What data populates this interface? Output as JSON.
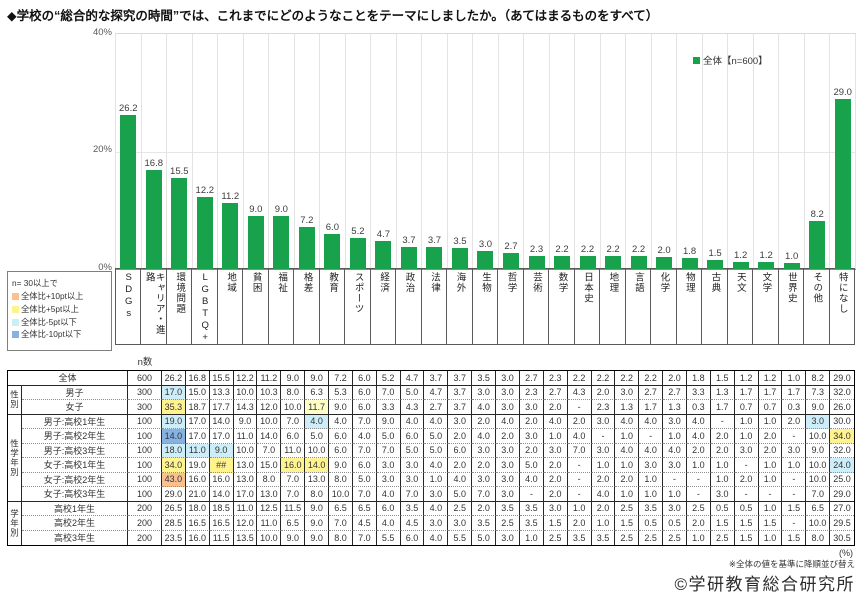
{
  "title": "◆学校の“総合的な探究の時間”では、これまでにどのようなことをテーマにしましたか。（あてはまるものをすべて）",
  "chart_data": {
    "type": "bar",
    "legend": "全体【n=600】",
    "ylim": [
      0,
      40
    ],
    "yticks": [
      "40%",
      "20%",
      "0%"
    ],
    "grid": "horizontal at 20%, vertical category separators",
    "categories": [
      "SDGs",
      "キャリア・進路",
      "環境問題",
      "LGBTQ+",
      "地域",
      "貧困",
      "福祉",
      "格差",
      "教育",
      "スポーツ",
      "経済",
      "政治",
      "法律",
      "海外",
      "生物",
      "哲学",
      "芸術",
      "数学",
      "日本史",
      "地理",
      "言語",
      "化学",
      "物理",
      "古典",
      "天文",
      "文学",
      "世界史",
      "その他",
      "特になし"
    ],
    "values": [
      26.2,
      16.8,
      15.5,
      12.2,
      11.2,
      9.0,
      9.0,
      7.2,
      6.0,
      5.2,
      4.7,
      3.7,
      3.7,
      3.5,
      3.0,
      2.7,
      2.3,
      2.2,
      2.2,
      2.2,
      2.2,
      2.0,
      1.8,
      1.5,
      1.2,
      1.2,
      1.0,
      8.2,
      29.0
    ]
  },
  "colors": {
    "bar": "#18A24B",
    "orange": "#FAC090",
    "yellow": "#FFF38F",
    "paleyellow": "#FFFFC8",
    "cyan": "#CDEEF8",
    "blue": "#86B2E1"
  },
  "threshold_legend": {
    "header": "n= 30以上で",
    "items": [
      {
        "label": "全体比+10pt以上",
        "color": "orange"
      },
      {
        "label": "全体比+5pt以上",
        "color": "yellow"
      },
      {
        "label": "全体比-5pt以下",
        "color": "cyan"
      },
      {
        "label": "全体比-10pt以下",
        "color": "blue"
      }
    ]
  },
  "table": {
    "n_header": "n数",
    "group_last_rows": [
      0,
      2,
      8,
      11
    ],
    "rows": [
      {
        "group": null,
        "full_width_name": true,
        "name": "全体",
        "n": "600",
        "values": [
          "26.2",
          "16.8",
          "15.5",
          "12.2",
          "11.2",
          "9.0",
          "9.0",
          "7.2",
          "6.0",
          "5.2",
          "4.7",
          "3.7",
          "3.7",
          "3.5",
          "3.0",
          "2.7",
          "2.3",
          "2.2",
          "2.2",
          "2.2",
          "2.2",
          "2.0",
          "1.8",
          "1.5",
          "1.2",
          "1.2",
          "1.0",
          "8.2",
          "29.0"
        ]
      },
      {
        "group": "性別",
        "group_span": 2,
        "name": "男子",
        "n": "300",
        "values": [
          "17.0",
          "15.0",
          "13.3",
          "10.0",
          "10.3",
          "8.0",
          "6.3",
          "5.3",
          "6.0",
          "7.0",
          "5.0",
          "4.7",
          "3.7",
          "3.0",
          "3.0",
          "2.3",
          "2.7",
          "4.3",
          "2.0",
          "3.0",
          "2.7",
          "2.7",
          "3.3",
          "1.3",
          "1.7",
          "1.7",
          "1.7",
          "7.3",
          "32.0"
        ]
      },
      {
        "group": null,
        "name": "女子",
        "n": "300",
        "values": [
          "35.3",
          "18.7",
          "17.7",
          "14.3",
          "12.0",
          "10.0",
          "11.7",
          "9.0",
          "6.0",
          "3.3",
          "4.3",
          "2.7",
          "3.7",
          "4.0",
          "3.0",
          "3.0",
          "2.0",
          "-",
          "2.3",
          "1.3",
          "1.7",
          "1.3",
          "0.3",
          "1.7",
          "0.7",
          "0.7",
          "0.3",
          "9.0",
          "26.0"
        ]
      },
      {
        "group": "性学年別",
        "group_span": 6,
        "name": "男子:高校1年生",
        "n": "100",
        "values": [
          "19.0",
          "17.0",
          "14.0",
          "9.0",
          "10.0",
          "7.0",
          "4.0",
          "4.0",
          "7.0",
          "9.0",
          "4.0",
          "4.0",
          "3.0",
          "2.0",
          "4.0",
          "2.0",
          "4.0",
          "2.0",
          "3.0",
          "4.0",
          "4.0",
          "3.0",
          "4.0",
          "-",
          "1.0",
          "1.0",
          "2.0",
          "3.0",
          "30.0"
        ]
      },
      {
        "group": null,
        "name": "男子:高校2年生",
        "n": "100",
        "values": [
          "14.0",
          "17.0",
          "17.0",
          "11.0",
          "14.0",
          "6.0",
          "5.0",
          "6.0",
          "4.0",
          "5.0",
          "6.0",
          "5.0",
          "2.0",
          "4.0",
          "2.0",
          "3.0",
          "1.0",
          "4.0",
          "-",
          "1.0",
          "-",
          "1.0",
          "4.0",
          "2.0",
          "1.0",
          "2.0",
          "-",
          "10.0",
          "34.0"
        ]
      },
      {
        "group": null,
        "name": "男子:高校3年生",
        "n": "100",
        "values": [
          "18.0",
          "11.0",
          "9.0",
          "10.0",
          "7.0",
          "11.0",
          "10.0",
          "6.0",
          "7.0",
          "7.0",
          "5.0",
          "5.0",
          "6.0",
          "3.0",
          "3.0",
          "2.0",
          "3.0",
          "7.0",
          "3.0",
          "4.0",
          "4.0",
          "4.0",
          "2.0",
          "2.0",
          "3.0",
          "2.0",
          "3.0",
          "9.0",
          "32.0"
        ]
      },
      {
        "group": null,
        "name": "女子:高校1年生",
        "n": "100",
        "values": [
          "34.0",
          "19.0",
          "##",
          "13.0",
          "15.0",
          "16.0",
          "14.0",
          "9.0",
          "6.0",
          "3.0",
          "3.0",
          "4.0",
          "2.0",
          "2.0",
          "3.0",
          "5.0",
          "2.0",
          "-",
          "1.0",
          "1.0",
          "3.0",
          "3.0",
          "1.0",
          "1.0",
          "-",
          "1.0",
          "1.0",
          "10.0",
          "24.0"
        ]
      },
      {
        "group": null,
        "name": "女子:高校2年生",
        "n": "100",
        "values": [
          "43.0",
          "16.0",
          "16.0",
          "13.0",
          "8.0",
          "7.0",
          "13.0",
          "8.0",
          "5.0",
          "3.0",
          "3.0",
          "1.0",
          "4.0",
          "3.0",
          "3.0",
          "4.0",
          "2.0",
          "-",
          "2.0",
          "2.0",
          "1.0",
          "-",
          "-",
          "1.0",
          "2.0",
          "1.0",
          "-",
          "10.0",
          "25.0"
        ]
      },
      {
        "group": null,
        "name": "女子:高校3年生",
        "n": "100",
        "values": [
          "29.0",
          "21.0",
          "14.0",
          "17.0",
          "13.0",
          "7.0",
          "8.0",
          "10.0",
          "7.0",
          "4.0",
          "7.0",
          "3.0",
          "5.0",
          "7.0",
          "3.0",
          "-",
          "2.0",
          "-",
          "4.0",
          "1.0",
          "1.0",
          "1.0",
          "-",
          "3.0",
          "-",
          "-",
          "-",
          "7.0",
          "29.0"
        ]
      },
      {
        "group": "学年別",
        "group_span": 3,
        "name": "高校1年生",
        "n": "200",
        "values": [
          "26.5",
          "18.0",
          "18.5",
          "11.0",
          "12.5",
          "11.5",
          "9.0",
          "6.5",
          "6.5",
          "6.0",
          "3.5",
          "4.0",
          "2.5",
          "2.0",
          "3.5",
          "3.5",
          "3.0",
          "1.0",
          "2.0",
          "2.5",
          "3.5",
          "3.0",
          "2.5",
          "0.5",
          "0.5",
          "1.0",
          "1.5",
          "6.5",
          "27.0"
        ]
      },
      {
        "group": null,
        "name": "高校2年生",
        "n": "200",
        "values": [
          "28.5",
          "16.5",
          "16.5",
          "12.0",
          "11.0",
          "6.5",
          "9.0",
          "7.0",
          "4.5",
          "4.0",
          "4.5",
          "3.0",
          "3.0",
          "3.5",
          "2.5",
          "3.5",
          "1.5",
          "2.0",
          "1.0",
          "1.5",
          "0.5",
          "0.5",
          "2.0",
          "1.5",
          "1.5",
          "1.5",
          "-",
          "10.0",
          "29.5"
        ]
      },
      {
        "group": null,
        "name": "高校3年生",
        "n": "200",
        "values": [
          "23.5",
          "16.0",
          "11.5",
          "13.5",
          "10.0",
          "9.0",
          "9.0",
          "8.0",
          "7.0",
          "5.5",
          "6.0",
          "4.0",
          "5.5",
          "5.0",
          "3.0",
          "1.0",
          "2.5",
          "3.5",
          "3.5",
          "2.5",
          "2.5",
          "2.5",
          "1.0",
          "2.5",
          "1.5",
          "1.0",
          "1.5",
          "8.0",
          "30.5"
        ]
      }
    ],
    "highlights": [
      {
        "row": 1,
        "col": 0,
        "color": "cyan"
      },
      {
        "row": 2,
        "col": 0,
        "color": "yellow"
      },
      {
        "row": 2,
        "col": 6,
        "color": "paleyellow"
      },
      {
        "row": 3,
        "col": 0,
        "color": "cyan"
      },
      {
        "row": 3,
        "col": 6,
        "color": "cyan"
      },
      {
        "row": 3,
        "col": 27,
        "color": "cyan"
      },
      {
        "row": 4,
        "col": 0,
        "color": "blue"
      },
      {
        "row": 4,
        "col": 28,
        "color": "yellow"
      },
      {
        "row": 5,
        "col": 0,
        "color": "cyan"
      },
      {
        "row": 5,
        "col": 1,
        "color": "cyan"
      },
      {
        "row": 5,
        "col": 2,
        "color": "cyan"
      },
      {
        "row": 6,
        "col": 0,
        "color": "yellow"
      },
      {
        "row": 6,
        "col": 2,
        "color": "yellow"
      },
      {
        "row": 6,
        "col": 5,
        "color": "yellow"
      },
      {
        "row": 6,
        "col": 6,
        "color": "yellow"
      },
      {
        "row": 6,
        "col": 28,
        "color": "cyan"
      },
      {
        "row": 7,
        "col": 0,
        "color": "orange"
      }
    ]
  },
  "footer": {
    "percent": "(%)",
    "note": "※全体の値を基準に降順並び替え",
    "copyright": "©学研教育総合研究所"
  }
}
